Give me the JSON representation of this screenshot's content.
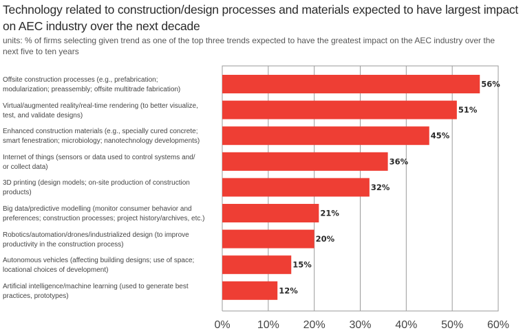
{
  "chart_data": {
    "type": "bar",
    "orientation": "horizontal",
    "title": "Technology related to construction/design processes and materials expected to have largest impact on AEC industry over the next decade",
    "subtitle": "units: % of firms selecting given trend as one of the top three trends expected to have the greatest impact on the AEC industry over the next five to ten years",
    "xlabel": "",
    "ylabel": "",
    "xlim": [
      0,
      60
    ],
    "xticks": [
      0,
      10,
      20,
      30,
      40,
      50,
      60
    ],
    "xtick_labels": [
      "0%",
      "10%",
      "20%",
      "30%",
      "40%",
      "50%",
      "60%"
    ],
    "grid": true,
    "bar_color": "#EE3E34",
    "categories": [
      "Offsite construction processes (e.g., prefabrication; modularization; preassembly; offsite multitrade fabrication)",
      "Virtual/augmented reality/real-time rendering (to better visualize, test, and validate designs)",
      "Enhanced construction materials (e.g., specially cured concrete; smart fenestration; microbiology; nanotechnology developments)",
      "Internet of things (sensors or data used to control systems and/ or collect data)",
      "3D printing (design models; on-site production of construction products)",
      "Big data/predictive modelling (monitor consumer behavior and preferences; construction processes; project history/archives, etc.)",
      "Robotics/automation/drones/industrialized design (to improve productivity in the construction process)",
      "Autonomous vehicles (affecting building designs; use of space; locational choices of development)",
      "Artificial intelligence/machine learning (used to generate best practices, prototypes)"
    ],
    "category_lines": [
      [
        "Offsite construction processes (e.g., prefabrication;",
        "modularization; preassembly; offsite multitrade fabrication)"
      ],
      [
        "Virtual/augmented reality/real-time rendering (to better visualize,",
        "test, and validate designs)"
      ],
      [
        "Enhanced construction materials (e.g., specially cured concrete;",
        "smart fenestration; microbiology; nanotechnology developments)"
      ],
      [
        "Internet of things (sensors or data used to control systems and/",
        "or collect data)"
      ],
      [
        "3D printing (design models; on-site production of construction",
        "products)"
      ],
      [
        "Big data/predictive modelling (monitor consumer behavior and",
        "preferences; construction processes; project history/archives, etc.)"
      ],
      [
        "Robotics/automation/drones/industrialized design (to improve",
        "productivity in the construction process)"
      ],
      [
        "Autonomous vehicles (affecting building designs; use of space;",
        "locational choices of development)"
      ],
      [
        "Artificial intelligence/machine learning (used to generate best",
        "practices, prototypes)"
      ]
    ],
    "values": [
      56,
      51,
      45,
      36,
      32,
      21,
      20,
      15,
      12
    ],
    "value_labels": [
      "56%",
      "51%",
      "45%",
      "36%",
      "32%",
      "21%",
      "20%",
      "15%",
      "12%"
    ]
  }
}
